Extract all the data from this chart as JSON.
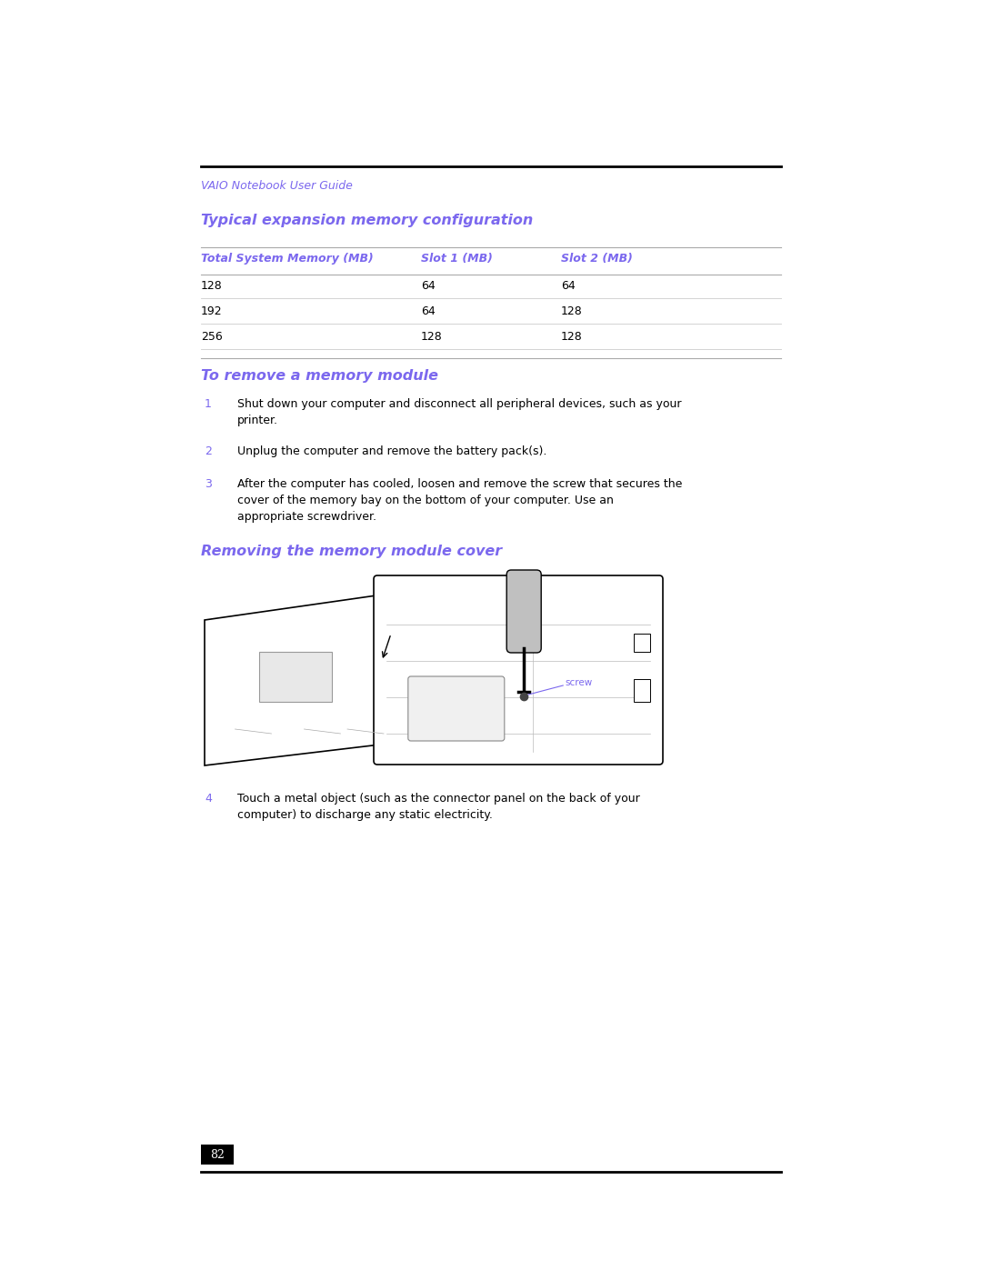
{
  "background_color": "#ffffff",
  "page_width": 10.8,
  "page_height": 13.97,
  "dpi": 100,
  "header_text": "VAIO Notebook User Guide",
  "header_color": "#7b68ee",
  "section_title": "Typical expansion memory configuration",
  "section_title_color": "#7b68ee",
  "table_headers": [
    "Total System Memory (MB)",
    "Slot 1 (MB)",
    "Slot 2 (MB)"
  ],
  "table_data": [
    [
      "128",
      "64",
      "64"
    ],
    [
      "192",
      "64",
      "128"
    ],
    [
      "256",
      "128",
      "128"
    ]
  ],
  "table_header_color": "#7b68ee",
  "remove_title": "To remove a memory module",
  "remove_title_color": "#7b68ee",
  "steps": [
    {
      "num": "1",
      "text": "Shut down your computer and disconnect all peripheral devices, such as your\nprinter."
    },
    {
      "num": "2",
      "text": "Unplug the computer and remove the battery pack(s)."
    },
    {
      "num": "3",
      "text": "After the computer has cooled, loosen and remove the screw that secures the\ncover of the memory bay on the bottom of your computer. Use an\nappropriate screwdriver."
    }
  ],
  "step_num_color": "#7b68ee",
  "image_caption": "Removing the memory module cover",
  "image_caption_color": "#7b68ee",
  "step4_num": "4",
  "step4_text": "Touch a metal object (such as the connector panel on the back of your\ncomputer) to discharge any static electricity.",
  "page_num": "82",
  "screw_label": "screw",
  "screw_label_color": "#7b68ee"
}
